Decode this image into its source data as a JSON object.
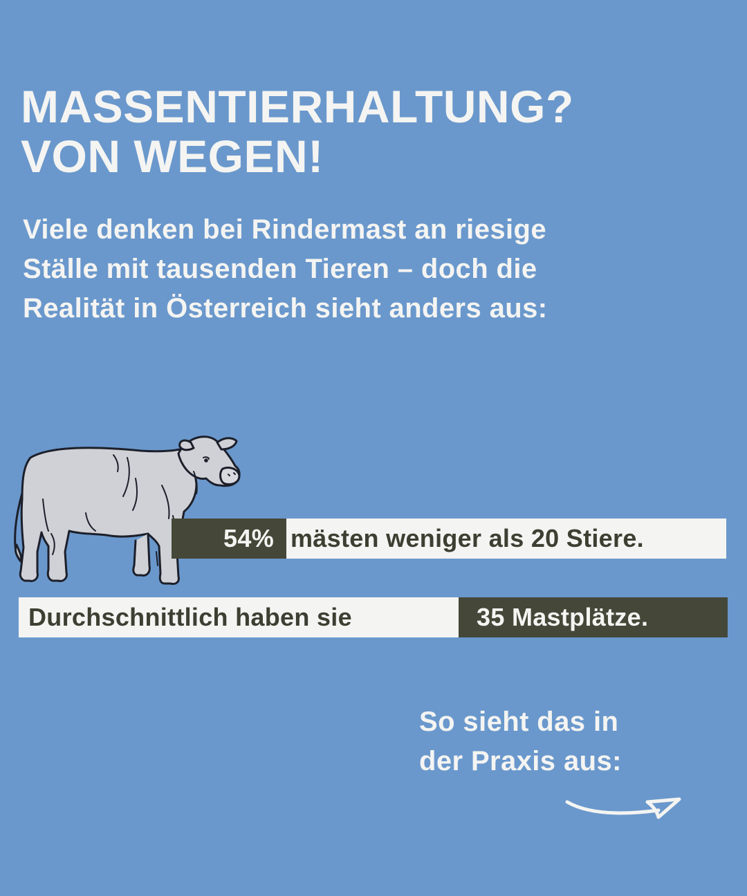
{
  "headline": {
    "line1": "MASSENTIERHALTUNG?",
    "line2": "VON WEGEN!"
  },
  "intro": {
    "line1": "Viele denken bei Rindermast an riesige",
    "line2": "Ställe mit tausenden Tieren – doch die",
    "line3": "Realität in Österreich sieht anders aus:"
  },
  "stat1": {
    "value": "54%",
    "text": "mästen weniger als 20 Stiere."
  },
  "stat2": {
    "text": "Durchschnittlich haben sie",
    "value": "35 Mastplätze."
  },
  "outro": {
    "line1": "So sieht das in",
    "line2": "der Praxis aus:"
  },
  "icons": {
    "cow": "cow-illustration",
    "arrow": "arrow-right-icon"
  },
  "colors": {
    "background": "#6a98cc",
    "text_light": "#f4f4f2",
    "dark_box": "#454738",
    "cow_fill": "#cfd1d6"
  }
}
